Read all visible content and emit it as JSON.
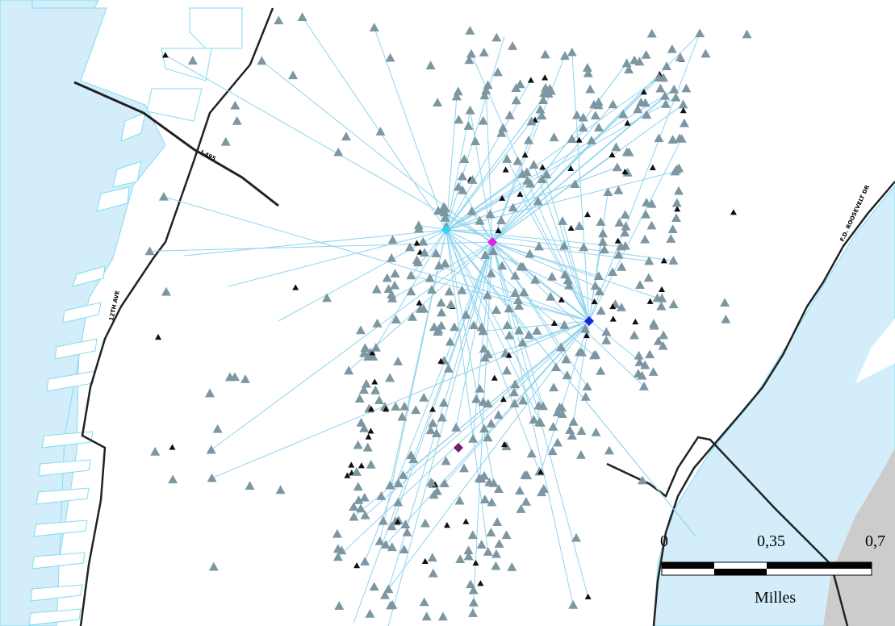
{
  "map": {
    "colors": {
      "water": "#d3eefa",
      "water_edge": "#7fdcf2",
      "land": "#ffffff",
      "shore": "#222222",
      "gray_area": "#cccccc",
      "station": "#7d97a2",
      "trip_line": "#8fd3ee",
      "hub_cyan": "#35d5ee",
      "hub_magenta": "#e61ee6",
      "hub_blue": "#1428dc",
      "hub_purple": "#7a1a6a",
      "dark_marker": "#101010"
    },
    "roads": {
      "i495": "I-495",
      "twelfth_ave": "12TH AVE",
      "fdr": "F.D. ROOSEVELT DR"
    },
    "icons": {
      "station": "triangle-marker-icon",
      "hub": "diamond-marker-icon",
      "small_station": "x-marker-icon"
    }
  },
  "scalebar": {
    "ticks": [
      "0",
      "0,35",
      "0,7"
    ],
    "unit": "Milles"
  }
}
